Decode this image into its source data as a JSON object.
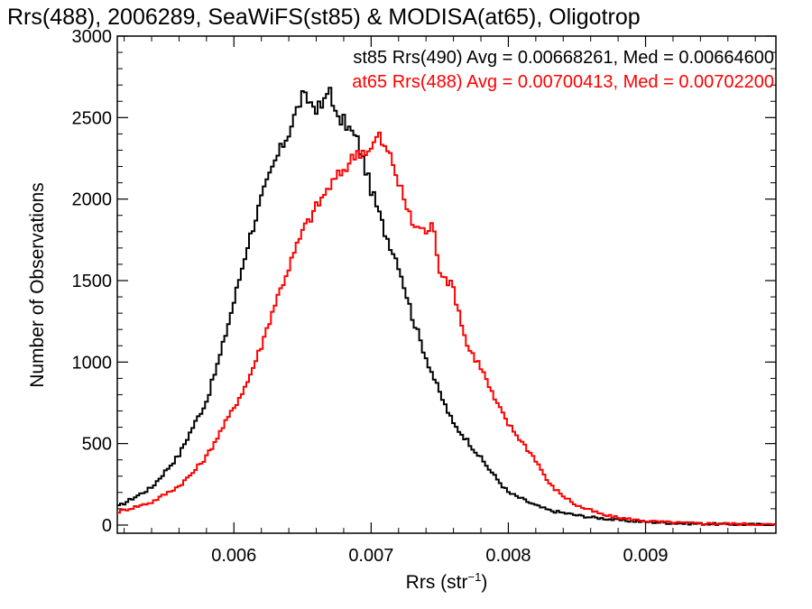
{
  "chart_data": {
    "type": "line",
    "title": "Rrs(488), 2006289, SeaWiFS(st85) & MODISA(at65), Oligotrop",
    "xlabel_base": "Rrs (str",
    "xlabel_sup": "−1",
    "xlabel_close": ")",
    "ylabel": "Number of Observations",
    "xlim": [
      0.00515,
      0.00995
    ],
    "ylim": [
      -50,
      3000
    ],
    "x_ticks": [
      {
        "value": 0.006,
        "label": "0.006"
      },
      {
        "value": 0.007,
        "label": "0.007"
      },
      {
        "value": 0.008,
        "label": "0.008"
      },
      {
        "value": 0.009,
        "label": "0.009"
      }
    ],
    "y_ticks": [
      {
        "value": 0,
        "label": "0"
      },
      {
        "value": 500,
        "label": "500"
      },
      {
        "value": 1000,
        "label": "1000"
      },
      {
        "value": 1500,
        "label": "1500"
      },
      {
        "value": 2000,
        "label": "2000"
      },
      {
        "value": 2500,
        "label": "2500"
      },
      {
        "value": 3000,
        "label": "3000"
      }
    ],
    "legend_position": "top-right",
    "series": [
      {
        "name": "st85 Rrs(490) Avg = 0.00668261, Med = 0.00664600",
        "color": "#000000",
        "step": true,
        "x": [
          0.00515,
          0.0054,
          0.0055,
          0.0056,
          0.0057,
          0.0058,
          0.0059,
          0.006,
          0.0061,
          0.0062,
          0.0063,
          0.0064,
          0.00645,
          0.0065,
          0.00655,
          0.0066,
          0.00665,
          0.0067,
          0.00675,
          0.0068,
          0.0069,
          0.007,
          0.0071,
          0.0072,
          0.0073,
          0.0074,
          0.0075,
          0.0076,
          0.0077,
          0.0078,
          0.0079,
          0.008,
          0.0081,
          0.0082,
          0.0083,
          0.0084,
          0.0085,
          0.0086,
          0.0087,
          0.0088,
          0.0089,
          0.009,
          0.0092,
          0.0094,
          0.0096,
          0.0098,
          0.00995
        ],
        "values": [
          110,
          230,
          330,
          430,
          600,
          760,
          1040,
          1370,
          1720,
          2000,
          2230,
          2410,
          2530,
          2630,
          2600,
          2560,
          2570,
          2690,
          2480,
          2480,
          2360,
          2060,
          1800,
          1600,
          1280,
          1030,
          810,
          620,
          520,
          410,
          300,
          200,
          160,
          120,
          90,
          75,
          60,
          48,
          40,
          30,
          25,
          20,
          12,
          8,
          5,
          3,
          3
        ]
      },
      {
        "name": "at65 Rrs(488) Avg = 0.00700413, Med = 0.00702200",
        "color": "#ff0000",
        "step": true,
        "x": [
          0.00515,
          0.0054,
          0.0055,
          0.0056,
          0.0057,
          0.0058,
          0.0059,
          0.006,
          0.0061,
          0.0062,
          0.0063,
          0.0064,
          0.0065,
          0.0066,
          0.0067,
          0.0068,
          0.0069,
          0.007,
          0.00705,
          0.0071,
          0.00715,
          0.0072,
          0.0073,
          0.0074,
          0.00745,
          0.0075,
          0.0076,
          0.0077,
          0.0078,
          0.0079,
          0.008,
          0.0081,
          0.0082,
          0.0083,
          0.0084,
          0.0085,
          0.0086,
          0.0087,
          0.0088,
          0.0089,
          0.009,
          0.0092,
          0.0094,
          0.0096,
          0.0098,
          0.00995
        ],
        "values": [
          80,
          140,
          190,
          240,
          320,
          420,
          570,
          720,
          880,
          1100,
          1360,
          1580,
          1800,
          1950,
          2080,
          2180,
          2290,
          2300,
          2400,
          2310,
          2250,
          2100,
          1850,
          1800,
          1840,
          1570,
          1450,
          1100,
          970,
          770,
          620,
          510,
          400,
          250,
          180,
          120,
          90,
          60,
          45,
          35,
          25,
          15,
          10,
          8,
          5,
          3
        ]
      }
    ]
  }
}
